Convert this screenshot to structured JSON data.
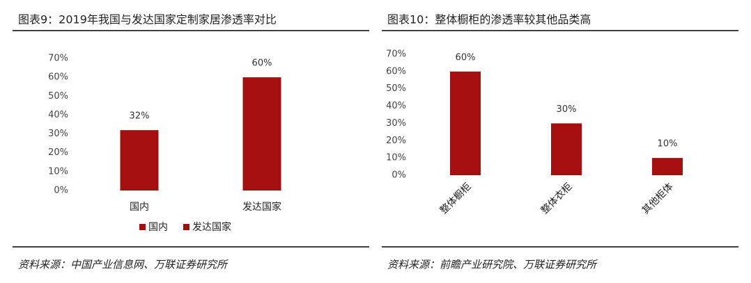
{
  "chart_data": [
    {
      "type": "bar",
      "title": "图表9：2019年我国与发达国家定制家居渗透率对比",
      "categories": [
        "国内",
        "发达国家"
      ],
      "values": [
        32,
        60
      ],
      "value_labels": [
        "32%",
        "60%"
      ],
      "color": "#a50f0f",
      "ylim": [
        0,
        70
      ],
      "yticks": [
        {
          "value": 0,
          "label": "0%"
        },
        {
          "value": 10,
          "label": "10%"
        },
        {
          "value": 20,
          "label": "20%"
        },
        {
          "value": 30,
          "label": "30%"
        },
        {
          "value": 40,
          "label": "40%"
        },
        {
          "value": 50,
          "label": "50%"
        },
        {
          "value": 60,
          "label": "60%"
        },
        {
          "value": 70,
          "label": "70%"
        }
      ],
      "legend": "bottom",
      "source": "资料来源：中国产业信息网、万联证券研究所"
    },
    {
      "type": "bar",
      "title": "图表10：整体橱柜的渗透率较其他品类高",
      "categories": [
        "整体橱柜",
        "整体衣柜",
        "其他柜体"
      ],
      "values": [
        60,
        30,
        10
      ],
      "value_labels": [
        "60%",
        "30%",
        "10%"
      ],
      "color": "#a50f0f",
      "ylim": [
        0,
        70
      ],
      "yticks": [
        {
          "value": 0,
          "label": "0%"
        },
        {
          "value": 10,
          "label": "10%"
        },
        {
          "value": 20,
          "label": "20%"
        },
        {
          "value": 30,
          "label": "30%"
        },
        {
          "value": 40,
          "label": "40%"
        },
        {
          "value": 50,
          "label": "50%"
        },
        {
          "value": 60,
          "label": "60%"
        },
        {
          "value": 70,
          "label": "70%"
        }
      ],
      "source": "资料来源：前瞻产业研究院、万联证券研究所"
    }
  ]
}
